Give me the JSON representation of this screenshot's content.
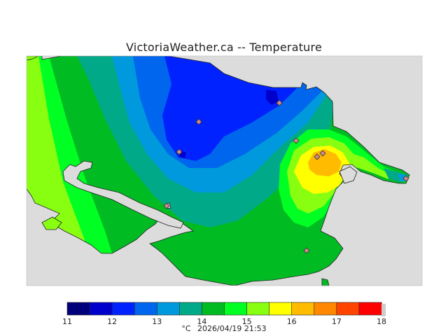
{
  "title": "VictoriaWeather.ca -- Temperature",
  "legend": {
    "unit": "°C",
    "timestamp": "2026/04/19 21:53",
    "ticks": [
      "11",
      "12",
      "13",
      "14",
      "15",
      "16",
      "17",
      "18"
    ],
    "range": [
      11,
      18
    ],
    "colors": [
      "#00007a",
      "#0000cc",
      "#0022ff",
      "#0066ee",
      "#0099dd",
      "#00aa88",
      "#00bb22",
      "#00ff22",
      "#88ff11",
      "#ffff00",
      "#ffbb00",
      "#ff8800",
      "#ff4400",
      "#ff0000"
    ]
  },
  "colors": {
    "background": "#d9d9d9",
    "sea": "#dcdcdc",
    "station_fill": "#cc8888",
    "station_stroke": "#333333"
  },
  "stations_count": 9
}
